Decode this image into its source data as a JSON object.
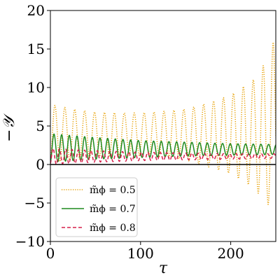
{
  "chart_data": {
    "type": "line",
    "title": "",
    "xlabel": "τ",
    "ylabel": "−𝒴",
    "xlim": [
      0,
      250
    ],
    "ylim": [
      -10,
      20
    ],
    "xticks": [
      0,
      100,
      200
    ],
    "yticks": [
      -10,
      -5,
      0,
      5,
      10,
      15,
      20
    ],
    "xtick_labels": [
      "0",
      "100",
      "200"
    ],
    "ytick_labels": [
      "−10",
      "−5",
      "0",
      "5",
      "10",
      "15",
      "20"
    ],
    "grid": false,
    "legend_position": "lower-left",
    "reference_line": {
      "y": 0,
      "color": "#000000"
    },
    "series": [
      {
        "name": "m̃ϕ = 0.5",
        "color": "#e69f00",
        "style": "dotted",
        "period": 11.0,
        "x": [
          0,
          25,
          50,
          75,
          100,
          125,
          150,
          175,
          200,
          225,
          240,
          248
        ],
        "max": [
          7.8,
          7.2,
          6.8,
          6.7,
          6.7,
          6.9,
          7.2,
          8.0,
          9.0,
          11.0,
          13.5,
          16.2
        ],
        "min": [
          0.2,
          0.6,
          1.0,
          1.2,
          1.2,
          1.0,
          0.6,
          -0.3,
          -1.2,
          -3.0,
          -5.0,
          -6.0
        ]
      },
      {
        "name": "m̃ϕ = 0.7",
        "color": "#1f8a1f",
        "style": "solid",
        "period": 8.5,
        "x": [
          0,
          50,
          100,
          150,
          200,
          250
        ],
        "max": [
          4.0,
          3.5,
          3.1,
          2.9,
          2.7,
          2.6
        ],
        "min": [
          0.3,
          0.7,
          0.9,
          1.1,
          1.2,
          1.3
        ]
      },
      {
        "name": "m̃ϕ = 0.8",
        "color": "#d6204b",
        "style": "dashed",
        "period": 7.0,
        "x": [
          0,
          50,
          100,
          150,
          200,
          250
        ],
        "max": [
          2.1,
          1.8,
          1.6,
          1.5,
          1.4,
          1.4
        ],
        "min": [
          0.0,
          0.3,
          0.5,
          0.6,
          0.7,
          0.8
        ]
      }
    ]
  }
}
